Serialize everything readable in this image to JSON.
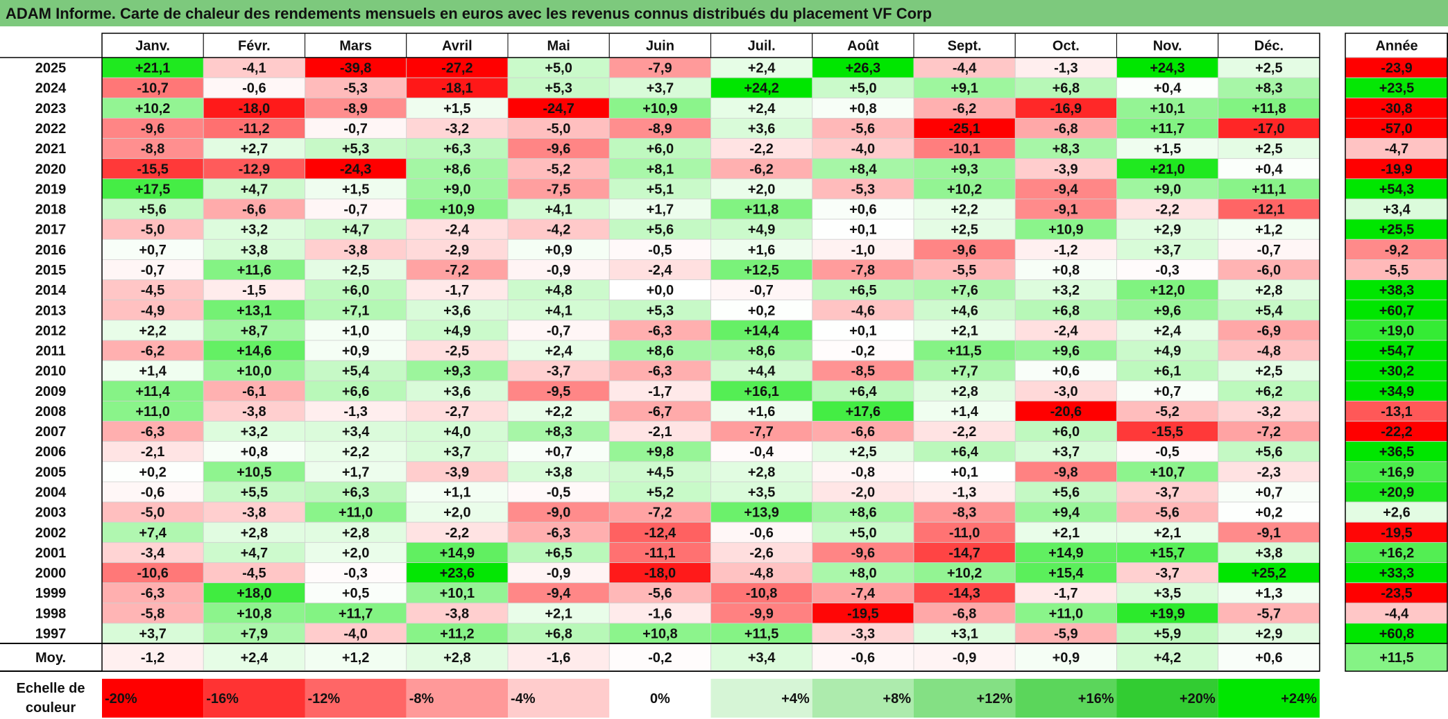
{
  "title": "ADAM Informe. Carte de chaleur des rendements mensuels en euros avec les revenus connus distribués du placement VF Corp",
  "chart_data": {
    "type": "heatmap",
    "months": [
      "Janv.",
      "Févr.",
      "Mars",
      "Avril",
      "Mai",
      "Juin",
      "Juil.",
      "Août",
      "Sept.",
      "Oct.",
      "Nov.",
      "Déc."
    ],
    "year_header": "Année",
    "avg_label": "Moy.",
    "rows": [
      {
        "year": "2025",
        "values": [
          "+21,1",
          "-4,1",
          "-39,8",
          "-27,2",
          "+5,0",
          "-7,9",
          "+2,4",
          "+26,3",
          "-4,4",
          "-1,3",
          "+24,3",
          "+2,5"
        ],
        "annual": "-23,9"
      },
      {
        "year": "2024",
        "values": [
          "-10,7",
          "-0,6",
          "-5,3",
          "-18,1",
          "+5,3",
          "+3,7",
          "+24,2",
          "+5,0",
          "+9,1",
          "+6,8",
          "+0,4",
          "+8,3"
        ],
        "annual": "+23,5"
      },
      {
        "year": "2023",
        "values": [
          "+10,2",
          "-18,0",
          "-8,9",
          "+1,5",
          "-24,7",
          "+10,9",
          "+2,4",
          "+0,8",
          "-6,2",
          "-16,9",
          "+10,1",
          "+11,8"
        ],
        "annual": "-30,8"
      },
      {
        "year": "2022",
        "values": [
          "-9,6",
          "-11,2",
          "-0,7",
          "-3,2",
          "-5,0",
          "-8,9",
          "+3,6",
          "-5,6",
          "-25,1",
          "-6,8",
          "+11,7",
          "-17,0"
        ],
        "annual": "-57,0"
      },
      {
        "year": "2021",
        "values": [
          "-8,8",
          "+2,7",
          "+5,3",
          "+6,3",
          "-9,6",
          "+6,0",
          "-2,2",
          "-4,0",
          "-10,1",
          "+8,3",
          "+1,5",
          "+2,5"
        ],
        "annual": "-4,7"
      },
      {
        "year": "2020",
        "values": [
          "-15,5",
          "-12,9",
          "-24,3",
          "+8,6",
          "-5,2",
          "+8,1",
          "-6,2",
          "+8,4",
          "+9,3",
          "-3,9",
          "+21,0",
          "+0,4"
        ],
        "annual": "-19,9"
      },
      {
        "year": "2019",
        "values": [
          "+17,5",
          "+4,7",
          "+1,5",
          "+9,0",
          "-7,5",
          "+5,1",
          "+2,0",
          "-5,3",
          "+10,2",
          "-9,4",
          "+9,0",
          "+11,1"
        ],
        "annual": "+54,3"
      },
      {
        "year": "2018",
        "values": [
          "+5,6",
          "-6,6",
          "-0,7",
          "+10,9",
          "+4,1",
          "+1,7",
          "+11,8",
          "+0,6",
          "+2,2",
          "-9,1",
          "-2,2",
          "-12,1"
        ],
        "annual": "+3,4"
      },
      {
        "year": "2017",
        "values": [
          "-5,0",
          "+3,2",
          "+4,7",
          "-2,4",
          "-4,2",
          "+5,6",
          "+4,9",
          "+0,1",
          "+2,5",
          "+10,9",
          "+2,9",
          "+1,2"
        ],
        "annual": "+25,5"
      },
      {
        "year": "2016",
        "values": [
          "+0,7",
          "+3,8",
          "-3,8",
          "-2,9",
          "+0,9",
          "-0,5",
          "+1,6",
          "-1,0",
          "-9,6",
          "-1,2",
          "+3,7",
          "-0,7"
        ],
        "annual": "-9,2"
      },
      {
        "year": "2015",
        "values": [
          "-0,7",
          "+11,6",
          "+2,5",
          "-7,2",
          "-0,9",
          "-2,4",
          "+12,5",
          "-7,8",
          "-5,5",
          "+0,8",
          "-0,3",
          "-6,0"
        ],
        "annual": "-5,5"
      },
      {
        "year": "2014",
        "values": [
          "-4,5",
          "-1,5",
          "+6,0",
          "-1,7",
          "+4,8",
          "+0,0",
          "-0,7",
          "+6,5",
          "+7,6",
          "+3,2",
          "+12,0",
          "+2,8"
        ],
        "annual": "+38,3"
      },
      {
        "year": "2013",
        "values": [
          "-4,9",
          "+13,1",
          "+7,1",
          "+3,6",
          "+4,1",
          "+5,3",
          "+0,2",
          "-4,6",
          "+4,6",
          "+6,8",
          "+9,6",
          "+5,4"
        ],
        "annual": "+60,7"
      },
      {
        "year": "2012",
        "values": [
          "+2,2",
          "+8,7",
          "+1,0",
          "+4,9",
          "-0,7",
          "-6,3",
          "+14,4",
          "+0,1",
          "+2,1",
          "-2,4",
          "+2,4",
          "-6,9"
        ],
        "annual": "+19,0"
      },
      {
        "year": "2011",
        "values": [
          "-6,2",
          "+14,6",
          "+0,9",
          "-2,5",
          "+2,4",
          "+8,6",
          "+8,6",
          "-0,2",
          "+11,5",
          "+9,6",
          "+4,9",
          "-4,8"
        ],
        "annual": "+54,7"
      },
      {
        "year": "2010",
        "values": [
          "+1,4",
          "+10,0",
          "+5,4",
          "+9,3",
          "-3,7",
          "-6,3",
          "+4,4",
          "-8,5",
          "+7,7",
          "+0,6",
          "+6,1",
          "+2,5"
        ],
        "annual": "+30,2"
      },
      {
        "year": "2009",
        "values": [
          "+11,4",
          "-6,1",
          "+6,6",
          "+3,6",
          "-9,5",
          "-1,7",
          "+16,1",
          "+6,4",
          "+2,8",
          "-3,0",
          "+0,7",
          "+6,2"
        ],
        "annual": "+34,9"
      },
      {
        "year": "2008",
        "values": [
          "+11,0",
          "-3,8",
          "-1,3",
          "-2,7",
          "+2,2",
          "-6,7",
          "+1,6",
          "+17,6",
          "+1,4",
          "-20,6",
          "-5,2",
          "-3,2"
        ],
        "annual": "-13,1"
      },
      {
        "year": "2007",
        "values": [
          "-6,3",
          "+3,2",
          "+3,4",
          "+4,0",
          "+8,3",
          "-2,1",
          "-7,7",
          "-6,6",
          "-2,2",
          "+6,0",
          "-15,5",
          "-7,2"
        ],
        "annual": "-22,2"
      },
      {
        "year": "2006",
        "values": [
          "-2,1",
          "+0,8",
          "+2,2",
          "+3,7",
          "+0,7",
          "+9,8",
          "-0,4",
          "+2,5",
          "+6,4",
          "+3,7",
          "-0,5",
          "+5,6"
        ],
        "annual": "+36,5"
      },
      {
        "year": "2005",
        "values": [
          "+0,2",
          "+10,5",
          "+1,7",
          "-3,9",
          "+3,8",
          "+4,5",
          "+2,8",
          "-0,8",
          "+0,1",
          "-9,8",
          "+10,7",
          "-2,3"
        ],
        "annual": "+16,9"
      },
      {
        "year": "2004",
        "values": [
          "-0,6",
          "+5,5",
          "+6,3",
          "+1,1",
          "-0,5",
          "+5,2",
          "+3,5",
          "-2,0",
          "-1,3",
          "+5,6",
          "-3,7",
          "+0,7"
        ],
        "annual": "+20,9"
      },
      {
        "year": "2003",
        "values": [
          "-5,0",
          "-3,8",
          "+11,0",
          "+2,0",
          "-9,0",
          "-7,2",
          "+13,9",
          "+8,6",
          "-8,3",
          "+9,4",
          "-5,6",
          "+0,2"
        ],
        "annual": "+2,6"
      },
      {
        "year": "2002",
        "values": [
          "+7,4",
          "+2,8",
          "+2,8",
          "-2,2",
          "-6,3",
          "-12,4",
          "-0,6",
          "+5,0",
          "-11,0",
          "+2,1",
          "+2,1",
          "-9,1"
        ],
        "annual": "-19,5"
      },
      {
        "year": "2001",
        "values": [
          "-3,4",
          "+4,7",
          "+2,0",
          "+14,9",
          "+6,5",
          "-11,1",
          "-2,6",
          "-9,6",
          "-14,7",
          "+14,9",
          "+15,7",
          "+3,8"
        ],
        "annual": "+16,2"
      },
      {
        "year": "2000",
        "values": [
          "-10,6",
          "-4,5",
          "-0,3",
          "+23,6",
          "-0,9",
          "-18,0",
          "-4,8",
          "+8,0",
          "+10,2",
          "+15,4",
          "-3,7",
          "+25,2"
        ],
        "annual": "+33,3"
      },
      {
        "year": "1999",
        "values": [
          "-6,3",
          "+18,0",
          "+0,5",
          "+10,1",
          "-9,4",
          "-5,6",
          "-10,8",
          "-7,4",
          "-14,3",
          "-1,7",
          "+3,5",
          "+1,3"
        ],
        "annual": "-23,5"
      },
      {
        "year": "1998",
        "values": [
          "-5,8",
          "+10,8",
          "+11,7",
          "-3,8",
          "+2,1",
          "-1,6",
          "-9,9",
          "-19,5",
          "-6,8",
          "+11,0",
          "+19,9",
          "-5,7"
        ],
        "annual": "-4,4"
      },
      {
        "year": "1997",
        "values": [
          "+3,7",
          "+7,9",
          "-4,0",
          "+11,2",
          "+6,8",
          "+10,8",
          "+11,5",
          "-3,3",
          "+3,1",
          "-5,9",
          "+5,9",
          "+2,9"
        ],
        "annual": "+60,8"
      }
    ],
    "averages": [
      "-1,2",
      "+2,4",
      "+1,2",
      "+2,8",
      "-1,6",
      "-0,2",
      "+3,4",
      "-0,6",
      "-0,9",
      "+0,9",
      "+4,2",
      "+0,6"
    ],
    "annual_average": "+11,5",
    "scale": {
      "label_line1": "Echelle de",
      "label_line2": "couleur",
      "steps": [
        {
          "label": "-20%",
          "value": -20,
          "color": "#ff0000"
        },
        {
          "label": "-16%",
          "value": -16,
          "color": "#ff3333"
        },
        {
          "label": "-12%",
          "value": -12,
          "color": "#ff6666"
        },
        {
          "label": "-8%",
          "value": -8,
          "color": "#ff9999"
        },
        {
          "label": "-4%",
          "value": -4,
          "color": "#ffcccc"
        },
        {
          "label": "0%",
          "value": 0,
          "color": "#ffffff"
        },
        {
          "label": "+4%",
          "value": 4,
          "color": "#d6f5d6"
        },
        {
          "label": "+8%",
          "value": 8,
          "color": "#adebad"
        },
        {
          "label": "+12%",
          "value": 12,
          "color": "#84e084"
        },
        {
          "label": "+16%",
          "value": 16,
          "color": "#5bd65b"
        },
        {
          "label": "+20%",
          "value": 20,
          "color": "#32cc32"
        },
        {
          "label": "+24%",
          "value": 24,
          "color": "#00e600"
        }
      ]
    },
    "colors": {
      "title_bar": "#7dc97d",
      "max_negative": "#ff0000",
      "neutral": "#ffffff",
      "max_positive": "#00e600"
    }
  }
}
